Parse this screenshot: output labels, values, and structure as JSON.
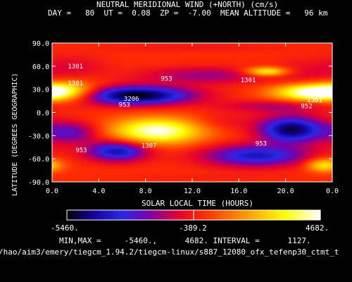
{
  "chart_data": {
    "type": "heatmap",
    "title": "NEUTRAL MERIDIONAL WIND (+NORTH) (cm/s)",
    "subtitle": "DAY =   80  UT =  0.08  ZP =  -7.00  MEAN ALTITUDE =   96 km",
    "xlabel": "SOLAR LOCAL TIME (HOURS)",
    "ylabel": "LATITUDE (DEGREES GEOGRAPHIC)",
    "xlim": [
      0,
      24
    ],
    "ylim": [
      -90,
      90
    ],
    "x_ticks": [
      "0.0",
      "4.0",
      "8.0",
      "12.0",
      "16.0",
      "20.0",
      "0.0"
    ],
    "x_tick_values": [
      0,
      4,
      8,
      12,
      16,
      20,
      24
    ],
    "y_ticks": [
      "90.0",
      "60.0",
      "30.0",
      "0.0",
      "-30.0",
      "-60.0",
      "-90.0"
    ],
    "y_tick_values": [
      90,
      60,
      30,
      0,
      -30,
      -60,
      -90
    ],
    "contour_labels": [
      {
        "text": "1301",
        "x": 2.0,
        "y": 60
      },
      {
        "text": "1301",
        "x": 2.0,
        "y": 38
      },
      {
        "text": "953",
        "x": 9.8,
        "y": 44
      },
      {
        "text": "1301",
        "x": 16.8,
        "y": 42
      },
      {
        "text": "3206",
        "x": 6.8,
        "y": 18
      },
      {
        "text": "953",
        "x": 6.2,
        "y": 10
      },
      {
        "text": "952",
        "x": 21.8,
        "y": 8
      },
      {
        "text": "1301",
        "x": 22.5,
        "y": 16
      },
      {
        "text": "1307",
        "x": 8.3,
        "y": -43
      },
      {
        "text": "953",
        "x": 17.9,
        "y": -40
      },
      {
        "text": "953",
        "x": 2.5,
        "y": -49
      }
    ],
    "field_blobs": [
      {
        "cx": 2.2,
        "cy": 60,
        "rx": 2.6,
        "ry": 15,
        "v": -700
      },
      {
        "cx": 22.5,
        "cy": 50,
        "rx": 3.5,
        "ry": 20,
        "v": -900
      },
      {
        "cx": 1.0,
        "cy": 28,
        "rx": 2.8,
        "ry": 13,
        "v": 3500
      },
      {
        "cx": 7.2,
        "cy": 22,
        "rx": 4.8,
        "ry": 12,
        "v": -5460
      },
      {
        "cx": 13.0,
        "cy": 48,
        "rx": 5.5,
        "ry": 11,
        "v": -1800
      },
      {
        "cx": 18.4,
        "cy": 53,
        "rx": 1.8,
        "ry": 6,
        "v": 3800
      },
      {
        "cx": 22.2,
        "cy": 26,
        "rx": 3.3,
        "ry": 11,
        "v": 4682
      },
      {
        "cx": 19.0,
        "cy": 8,
        "rx": 4.5,
        "ry": 8,
        "v": -1500
      },
      {
        "cx": 9.0,
        "cy": -24,
        "rx": 3.9,
        "ry": 17,
        "v": 4682
      },
      {
        "cx": 20.5,
        "cy": -22,
        "rx": 2.7,
        "ry": 17,
        "v": -5000
      },
      {
        "cx": 17.5,
        "cy": -56,
        "rx": 4.5,
        "ry": 14,
        "v": -3800
      },
      {
        "cx": 5.6,
        "cy": -50,
        "rx": 2.6,
        "ry": 13,
        "v": -4200
      },
      {
        "cx": 1.6,
        "cy": -26,
        "rx": 2.4,
        "ry": 14,
        "v": -2600
      },
      {
        "cx": 23.3,
        "cy": -68,
        "rx": 1.5,
        "ry": 9,
        "v": 3200
      },
      {
        "cx": 14.6,
        "cy": -12,
        "rx": 2.8,
        "ry": 12,
        "v": -700
      },
      {
        "cx": 12.0,
        "cy": 84,
        "rx": 8.0,
        "ry": 5,
        "v": -500
      },
      {
        "cx": 12.0,
        "cy": -84,
        "rx": 8.0,
        "ry": 5,
        "v": -300
      }
    ],
    "colorbar": {
      "min_label": "-5460.",
      "mid_label": "-389.2",
      "max_label": "4682.",
      "min": -5460,
      "max": 4682
    },
    "stats_text": "MIN,MAX =     -5460.,      4682. INTERVAL =      1127.",
    "path_text": "/hao/aim3/emery/tiegcm_1.94.2/tiegcm-linux/s887_12080_ofx_tefenp30_ctmt_t"
  }
}
